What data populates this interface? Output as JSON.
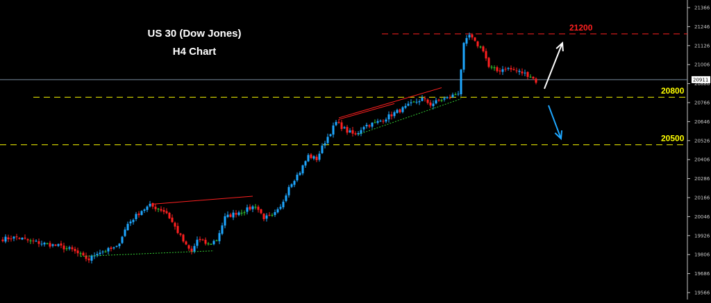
{
  "chart_data": {
    "type": "candlestick",
    "title": "US 30 (Dow Jones)",
    "subtitle": "H4 Chart",
    "xlabel": "",
    "ylabel": "",
    "ylim": [
      19546,
      21416
    ],
    "y_ticks": [
      21366,
      21246,
      21126,
      21006,
      20886,
      20766,
      20646,
      20526,
      20406,
      20286,
      20166,
      20046,
      19926,
      19806,
      19686,
      19566
    ],
    "current_price": {
      "value": 20911,
      "label": "20911"
    },
    "grid": false,
    "levels": [
      {
        "value": 21200,
        "label": "21200",
        "color": "#ff2020"
      },
      {
        "value": 20800,
        "label": "20800",
        "color": "#ffff00"
      },
      {
        "value": 20500,
        "label": "20500",
        "color": "#ffff00"
      }
    ],
    "colors": {
      "up": "#1ea7ff",
      "down": "#ff2020",
      "doji": "#33cc33",
      "axis": "#c8c8c8",
      "price_line": "#7a8ca0",
      "bull_arrow": "#ffffff",
      "bear_arrow": "#1ea7ff"
    },
    "anchors": [
      [
        0,
        19905
      ],
      [
        5,
        19915
      ],
      [
        10,
        19890
      ],
      [
        15,
        19875
      ],
      [
        20,
        19860
      ],
      [
        25,
        19835
      ],
      [
        29,
        19790
      ],
      [
        31,
        19775
      ],
      [
        34,
        19820
      ],
      [
        38,
        19835
      ],
      [
        41,
        19850
      ],
      [
        45,
        20000
      ],
      [
        50,
        20085
      ],
      [
        53,
        20115
      ],
      [
        57,
        20090
      ],
      [
        59,
        20070
      ],
      [
        61,
        20010
      ],
      [
        64,
        19920
      ],
      [
        66,
        19860
      ],
      [
        68,
        19820
      ],
      [
        70,
        19900
      ],
      [
        74,
        19870
      ],
      [
        77,
        19900
      ],
      [
        80,
        20040
      ],
      [
        84,
        20070
      ],
      [
        88,
        20090
      ],
      [
        91,
        20115
      ],
      [
        94,
        20040
      ],
      [
        97,
        20045
      ],
      [
        100,
        20100
      ],
      [
        103,
        20240
      ],
      [
        107,
        20330
      ],
      [
        110,
        20430
      ],
      [
        113,
        20410
      ],
      [
        116,
        20520
      ],
      [
        120,
        20640
      ],
      [
        124,
        20585
      ],
      [
        127,
        20560
      ],
      [
        130,
        20620
      ],
      [
        134,
        20635
      ],
      [
        137,
        20660
      ],
      [
        141,
        20700
      ],
      [
        145,
        20735
      ],
      [
        148,
        20765
      ],
      [
        151,
        20790
      ],
      [
        154,
        20755
      ],
      [
        158,
        20785
      ],
      [
        161,
        20800
      ],
      [
        164,
        20830
      ],
      [
        166,
        21130
      ],
      [
        168,
        21190
      ],
      [
        170,
        21145
      ],
      [
        173,
        21100
      ],
      [
        175,
        20990
      ],
      [
        178,
        20965
      ],
      [
        181,
        20985
      ],
      [
        184,
        20970
      ],
      [
        187,
        20955
      ],
      [
        190,
        20935
      ],
      [
        192,
        20900
      ]
    ],
    "trendlines": [
      {
        "from": [
          54,
          20125
        ],
        "to": [
          90,
          20175
        ],
        "color": "#ff2020"
      },
      {
        "from": [
          28,
          19795
        ],
        "to": [
          76,
          19830
        ],
        "color": "#33cc33",
        "style": "dotted"
      },
      {
        "from": [
          121,
          20670
        ],
        "to": [
          158,
          20860
        ],
        "color": "#ff2020"
      },
      {
        "from": [
          121,
          20660
        ],
        "to": [
          141,
          20760
        ],
        "color": "#ff2020"
      },
      {
        "from": [
          128,
          20565
        ],
        "to": [
          165,
          20790
        ],
        "color": "#33cc33",
        "style": "dotted"
      }
    ]
  }
}
